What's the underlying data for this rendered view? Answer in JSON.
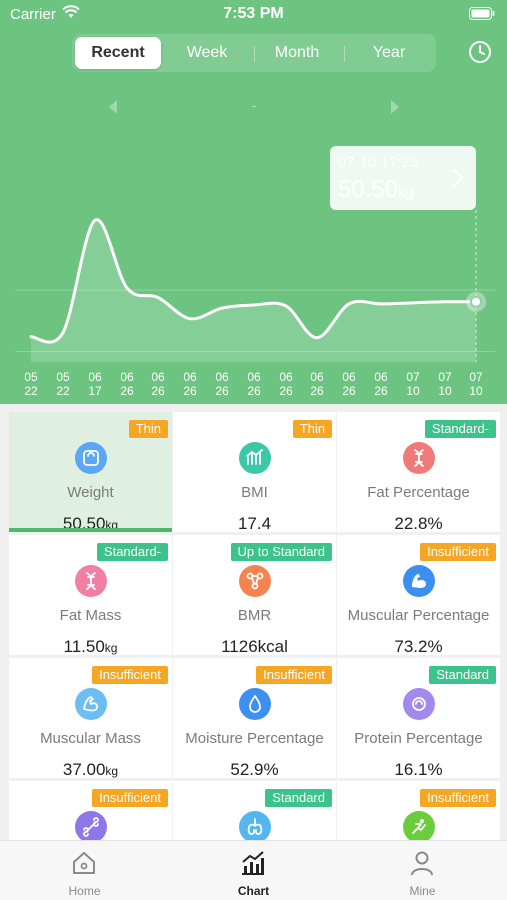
{
  "status_bar": {
    "carrier": "Carrier",
    "time": "7:53 PM"
  },
  "segments": [
    {
      "label": "Recent",
      "active": true
    },
    {
      "label": "Week",
      "active": false
    },
    {
      "label": "Month",
      "active": false
    },
    {
      "label": "Year",
      "active": false
    }
  ],
  "range_label": "-",
  "tooltip": {
    "time": "07-10 17:23",
    "value": "50.50",
    "unit": "kg"
  },
  "chart_data": {
    "type": "area",
    "x": [
      "05 22",
      "05 22",
      "06 17",
      "06 26",
      "06 26",
      "06 26",
      "06 26",
      "06 26",
      "06 26",
      "06 26",
      "06 26",
      "06 26",
      "07 10",
      "07 10",
      "07 10"
    ],
    "values": [
      47.2,
      47.6,
      58.2,
      51.8,
      50.9,
      48.9,
      49.9,
      50.2,
      50.1,
      47.1,
      50.3,
      50.3,
      50.4,
      50.5,
      50.5
    ],
    "ylim": [
      45,
      62
    ],
    "selected_index": 14,
    "grid": true
  },
  "metrics": [
    {
      "name": "Weight",
      "value": "50.50",
      "unit": "kg",
      "badge": "Thin",
      "badge_color": "orange",
      "icon": "scale-icon",
      "icon_color": "#5aa7f5",
      "selected": true
    },
    {
      "name": "BMI",
      "value": "17.4",
      "unit": "",
      "badge": "Thin",
      "badge_color": "orange",
      "icon": "bmi-chart-icon",
      "icon_color": "#3cc7a8",
      "selected": false
    },
    {
      "name": "Fat Percentage",
      "value": "22.8%",
      "unit": "",
      "badge": "Standard-",
      "badge_color": "green",
      "icon": "dna-icon",
      "icon_color": "#f07a78",
      "selected": false
    },
    {
      "name": "Fat Mass",
      "value": "11.50",
      "unit": "kg",
      "badge": "Standard-",
      "badge_color": "green",
      "icon": "dna-icon",
      "icon_color": "#f17fa2",
      "selected": false
    },
    {
      "name": "BMR",
      "value": "1126kcal",
      "unit": "",
      "badge": "Up to Standard",
      "badge_color": "green",
      "icon": "molecule-icon",
      "icon_color": "#f6824f",
      "selected": false
    },
    {
      "name": "Muscular Percentage",
      "value": "73.2%",
      "unit": "",
      "badge": "Insufficient",
      "badge_color": "orange",
      "icon": "arm-muscle-icon",
      "icon_color": "#3c8ff0",
      "selected": false
    },
    {
      "name": "Muscular Mass",
      "value": "37.00",
      "unit": "kg",
      "badge": "Insufficient",
      "badge_color": "orange",
      "icon": "flex-arm-icon",
      "icon_color": "#6bbdf2",
      "selected": false
    },
    {
      "name": "Moisture Percentage",
      "value": "52.9%",
      "unit": "",
      "badge": "Insufficient",
      "badge_color": "orange",
      "icon": "water-drop-icon",
      "icon_color": "#3d8ff2",
      "selected": false
    },
    {
      "name": "Protein Percentage",
      "value": "16.1%",
      "unit": "",
      "badge": "Standard",
      "badge_color": "green",
      "icon": "protein-icon",
      "icon_color": "#a389ee",
      "selected": false
    },
    {
      "name": "",
      "value": "",
      "unit": "",
      "badge": "Insufficient",
      "badge_color": "orange",
      "icon": "bone-icon",
      "icon_color": "#8c78e8",
      "selected": false
    },
    {
      "name": "",
      "value": "",
      "unit": "",
      "badge": "Standard",
      "badge_color": "green",
      "icon": "lungs-icon",
      "icon_color": "#54b6ee",
      "selected": false
    },
    {
      "name": "",
      "value": "",
      "unit": "",
      "badge": "Insufficient",
      "badge_color": "orange",
      "icon": "stretch-icon",
      "icon_color": "#6ccd3c",
      "selected": false
    }
  ],
  "tabbar": [
    {
      "label": "Home",
      "icon": "home-icon",
      "active": false
    },
    {
      "label": "Chart",
      "icon": "chart-icon",
      "active": true
    },
    {
      "label": "Mine",
      "icon": "person-icon",
      "active": false
    }
  ]
}
